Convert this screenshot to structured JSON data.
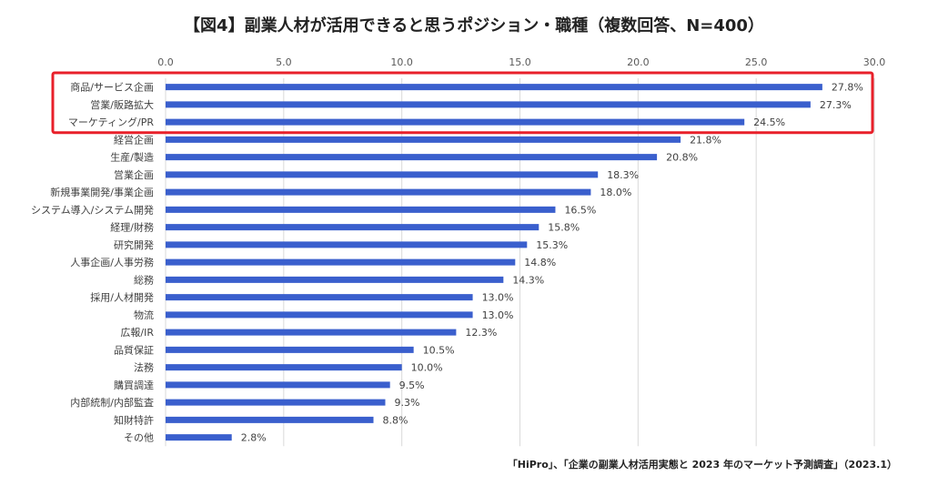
{
  "chart_data": {
    "type": "bar",
    "orientation": "horizontal",
    "title": "【図4】副業人材が活用できると思うポジション・職種（複数回答、N=400）",
    "source": "「HiPro」、「企業の副業人材活用実態と 2023 年のマーケット予測調査」（2023.1）",
    "xlim": [
      0,
      30
    ],
    "ticks": [
      "0.0",
      "5.0",
      "10.0",
      "15.0",
      "20.0",
      "25.0",
      "30.0"
    ],
    "tick_values": [
      0,
      5,
      10,
      15,
      20,
      25,
      30
    ],
    "value_suffix": "%",
    "bar_color": "#3a5fcd",
    "highlight_color": "#e8202a",
    "highlight_count": 3,
    "categories": [
      "商品/サービス企画",
      "営業/販路拡大",
      "マーケティング/PR",
      "経営企画",
      "生産/製造",
      "営業企画",
      "新規事業開発/事業企画",
      "システム導入/システム開発",
      "経理/財務",
      "研究開発",
      "人事企画/人事労務",
      "総務",
      "採用/人材開発",
      "物流",
      "広報/IR",
      "品質保証",
      "法務",
      "購買調達",
      "内部統制/内部監査",
      "知財特許",
      "その他"
    ],
    "values": [
      27.8,
      27.3,
      24.5,
      21.8,
      20.8,
      18.3,
      18.0,
      16.5,
      15.8,
      15.3,
      14.8,
      14.3,
      13.0,
      13.0,
      12.3,
      10.5,
      10.0,
      9.5,
      9.3,
      8.8,
      2.8
    ],
    "labels": [
      "27.8%",
      "27.3%",
      "24.5%",
      "21.8%",
      "20.8%",
      "18.3%",
      "18.0%",
      "16.5%",
      "15.8%",
      "15.3%",
      "14.8%",
      "14.3%",
      "13.0%",
      "13.0%",
      "12.3%",
      "10.5%",
      "10.0%",
      "9.5%",
      "9.3%",
      "8.8%",
      "2.8%"
    ]
  }
}
